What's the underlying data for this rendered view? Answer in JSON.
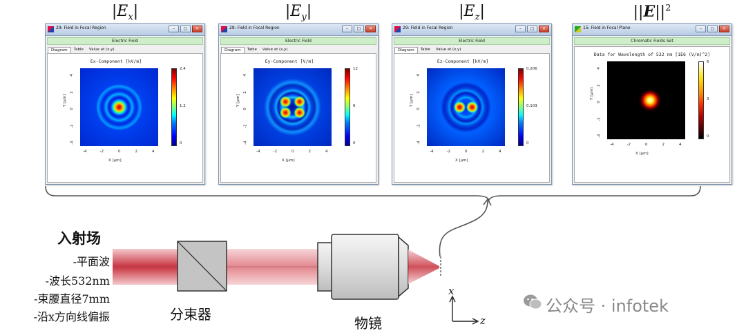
{
  "component_labels": {
    "ex": {
      "sym": "E",
      "sub": "x"
    },
    "ey": {
      "sym": "E",
      "sub": "y"
    },
    "ez": {
      "sym": "E",
      "sub": "z"
    },
    "etotal": {
      "sym": "E",
      "sup": "2"
    }
  },
  "windows": [
    {
      "title": "29: Field in Focal Region",
      "banner": "Electric Field",
      "tabs": [
        "Diagram",
        "Table",
        "Value at (x,y)"
      ],
      "plot_title": "Ex-Component  [kV/m]",
      "cbar_ticks": [
        "2.4",
        "1.2",
        "0"
      ],
      "pattern": "central"
    },
    {
      "title": "28: Field in Focal Region",
      "banner": "Electric Field",
      "tabs": [
        "Diagram",
        "Table",
        "Value at (x,y)"
      ],
      "plot_title": "Ey-Component  [V/m]",
      "cbar_ticks": [
        "12",
        "6",
        "0"
      ],
      "pattern": "quad"
    },
    {
      "title": "29: Field in Focal Region",
      "banner": "Electric Field",
      "tabs": [
        "Diagram",
        "Table",
        "Value at (x,y)"
      ],
      "plot_title": "Ez-Component  [kV/m]",
      "cbar_ticks": [
        "0.206",
        "0.103",
        "0"
      ],
      "pattern": "dual"
    },
    {
      "title": "15: Field in Focal Plane",
      "banner": "Chromatic Fields Set",
      "tabs": [],
      "plot_title": "Data for Wavelength of 532 nm  [1E6 (V/m)^2]",
      "cbar_ticks": [
        "6",
        "3",
        "0"
      ],
      "pattern": "hot"
    }
  ],
  "axes": {
    "x_ticks": [
      "-4",
      "-2",
      "0",
      "2",
      "4"
    ],
    "y_ticks": [
      "4",
      "2",
      "0",
      "-2",
      "-4"
    ],
    "xlabel": "X [µm]",
    "ylabel": "Y [µm]"
  },
  "window_buttons": [
    "–",
    "□",
    "×"
  ],
  "incident": {
    "title": "入射场",
    "lines": [
      "-平面波",
      "-波长532nm",
      "-束腰直径7mm",
      "-沿x方向线偏振"
    ]
  },
  "components": {
    "beamsplitter": "分束器",
    "objective": "物镜"
  },
  "coords": {
    "x": "x",
    "z": "z"
  },
  "watermark": "公众号 · infotek",
  "colors": {
    "beam": "#d4606a",
    "jet_low": "#0000a0",
    "jet_high": "#b00000",
    "hot_bg": "#000000"
  }
}
